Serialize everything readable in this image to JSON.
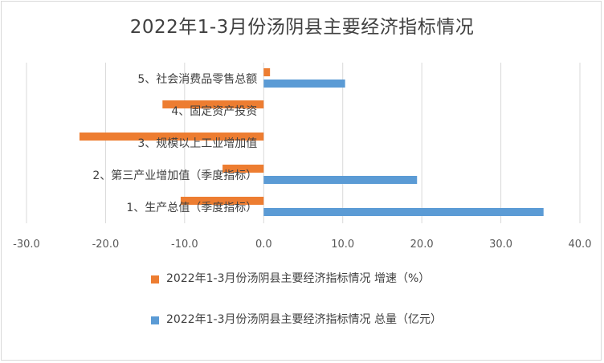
{
  "chart_data": {
    "type": "bar",
    "orientation": "horizontal",
    "title": "2022年1-3月份汤阴县主要经济指标情况",
    "categories": [
      "1、生产总值（季度指标）",
      "2、第三产业增加值（季度指标）",
      "3、规模以上工业增加值",
      "4、固定资产投资",
      "5、社会消费品零售总额"
    ],
    "series": [
      {
        "name": "2022年1-3月份汤阴县主要经济指标情况 增速（%）",
        "color": "#ED7D31",
        "values": [
          -10.5,
          -5.2,
          -23.3,
          -12.8,
          0.8
        ]
      },
      {
        "name": "2022年1-3月份汤阴县主要经济指标情况 总量（亿元）",
        "color": "#5B9BD5",
        "values": [
          35.4,
          19.4,
          null,
          null,
          10.3
        ]
      }
    ],
    "xlim": [
      -30,
      40
    ],
    "x_ticks": [
      "-30.0",
      "-20.0",
      "-10.0",
      "0.0",
      "10.0",
      "20.0",
      "30.0",
      "40.0"
    ],
    "grid": true,
    "legend_position": "bottom"
  }
}
